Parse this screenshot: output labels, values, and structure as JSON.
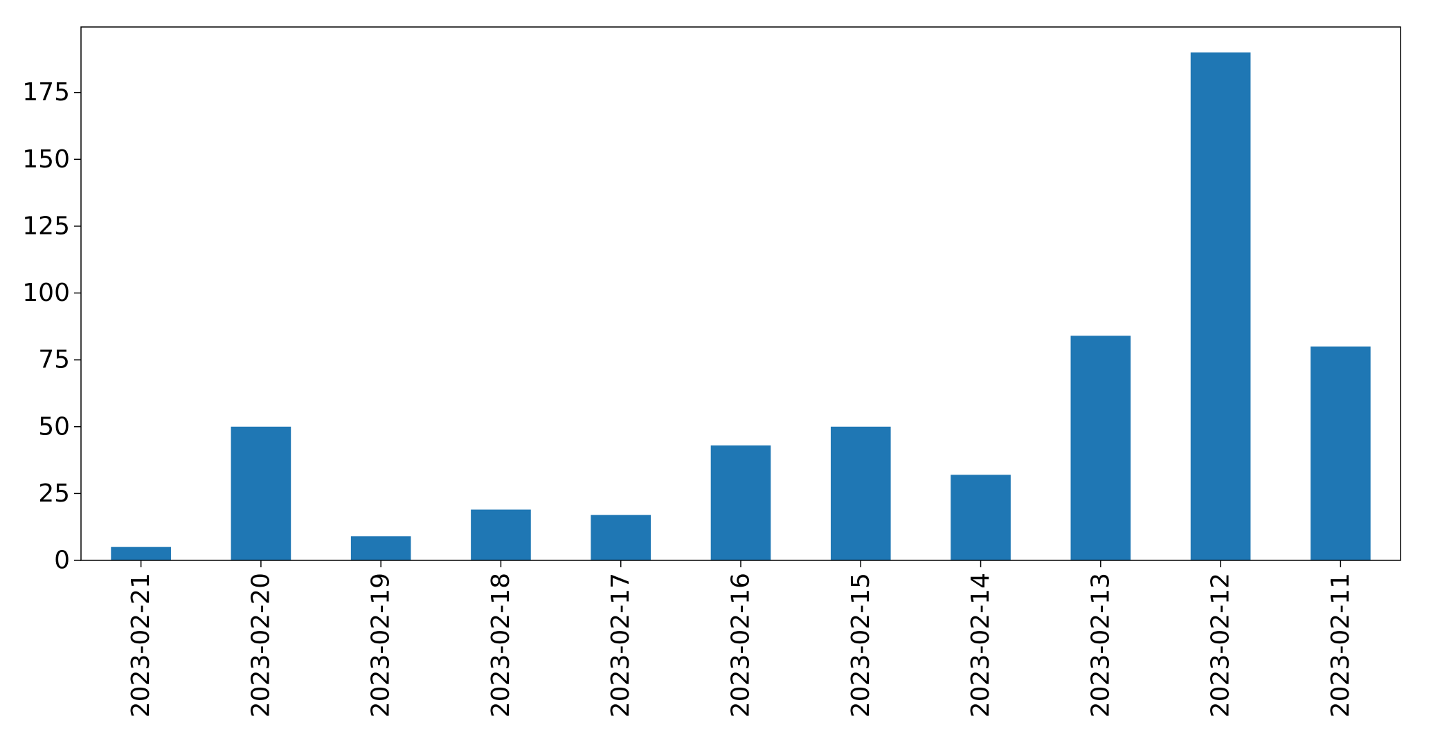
{
  "chart_data": {
    "type": "bar",
    "categories": [
      "2023-02-21",
      "2023-02-20",
      "2023-02-19",
      "2023-02-18",
      "2023-02-17",
      "2023-02-16",
      "2023-02-15",
      "2023-02-14",
      "2023-02-13",
      "2023-02-12",
      "2023-02-11"
    ],
    "values": [
      5,
      50,
      9,
      19,
      17,
      43,
      50,
      32,
      84,
      190,
      80
    ],
    "ylim": [
      0,
      199.5
    ],
    "yticks": [
      0,
      25,
      50,
      75,
      100,
      125,
      150,
      175
    ],
    "title": "",
    "xlabel": "",
    "ylabel": "",
    "bar_color": "#1f77b4",
    "grid": false,
    "legend": "none"
  }
}
